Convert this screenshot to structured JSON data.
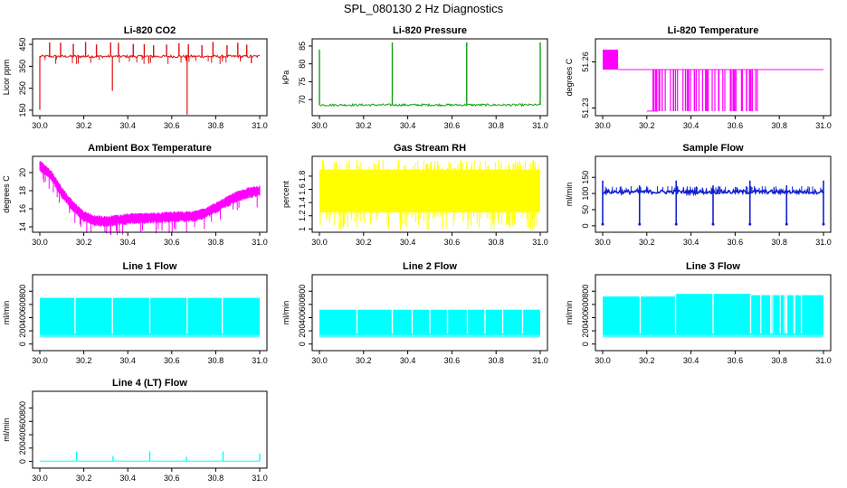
{
  "page_title": "SPL_080130  2 Hz Diagnostics",
  "chart_data": [
    {
      "id": "co2",
      "type": "line",
      "title": "Li-820 CO2",
      "ylabel": "Licor ppm",
      "color": "#e01010",
      "xlim": [
        30.0,
        31.0
      ],
      "ylim": [
        125,
        475
      ],
      "yticks": [
        150,
        250,
        350,
        450
      ],
      "baseline": 395,
      "noise": 6,
      "spikes_up_to": 462,
      "spike_count": 18,
      "spikes_down": [
        {
          "x": 30.0,
          "v": 152
        },
        {
          "x": 30.33,
          "v": 238
        },
        {
          "x": 30.67,
          "v": 130
        }
      ]
    },
    {
      "id": "pressure",
      "type": "line",
      "title": "Li-820 Pressure",
      "ylabel": "kPa",
      "color": "#10a010",
      "xlim": [
        30.0,
        31.0
      ],
      "ylim": [
        65.5,
        87
      ],
      "yticks": [
        70,
        75,
        80,
        85
      ],
      "baseline": 68.5,
      "noise": 0.3,
      "spikes_up": [
        {
          "x": 30.0,
          "v": 84
        },
        {
          "x": 30.33,
          "v": 86
        },
        {
          "x": 30.667,
          "v": 86
        },
        {
          "x": 31.0,
          "v": 86
        }
      ]
    },
    {
      "id": "licor_temp",
      "type": "step",
      "title": "Li-820 Temperature",
      "ylabel": "degrees C",
      "color": "#ff00ff",
      "xlim": [
        30.0,
        31.0
      ],
      "ylim": [
        51.225,
        51.275
      ],
      "yticks": [
        51.23,
        51.26
      ],
      "high_level": 51.268,
      "mid_level": 51.255,
      "low_level": 51.228,
      "high_band": [
        30.0,
        30.07
      ],
      "pulse_range": [
        30.2,
        30.71
      ]
    },
    {
      "id": "ambient_temp",
      "type": "line",
      "title": "Ambient Box Temperature",
      "ylabel": "degrees C",
      "color": "#ff00ff",
      "xlim": [
        30.0,
        31.0
      ],
      "ylim": [
        13.4,
        21.8
      ],
      "yticks": [
        14,
        16,
        18,
        20
      ],
      "curve": [
        [
          30.0,
          20.8
        ],
        [
          30.05,
          19.8
        ],
        [
          30.1,
          17.8
        ],
        [
          30.15,
          16.3
        ],
        [
          30.2,
          15.2
        ],
        [
          30.25,
          14.7
        ],
        [
          30.3,
          14.6
        ],
        [
          30.4,
          14.9
        ],
        [
          30.5,
          15.0
        ],
        [
          30.6,
          15.1
        ],
        [
          30.7,
          15.2
        ],
        [
          30.75,
          15.5
        ],
        [
          30.8,
          16.1
        ],
        [
          30.85,
          16.8
        ],
        [
          30.9,
          17.4
        ],
        [
          30.95,
          17.8
        ],
        [
          31.0,
          18.0
        ]
      ]
    },
    {
      "id": "rh",
      "type": "band",
      "title": "Gas Stream RH",
      "ylabel": "percent",
      "color": "#ffff00",
      "xlim": [
        30.0,
        31.0
      ],
      "ylim": [
        0.95,
        2.1
      ],
      "yticks": [
        1.0,
        1.2,
        1.4,
        1.6,
        1.8
      ],
      "band_top": 1.9,
      "band_bottom": 1.25,
      "spike_top": 2.05,
      "spike_bottom": 0.98
    },
    {
      "id": "sample_flow",
      "type": "line",
      "title": "Sample Flow",
      "ylabel": "ml/min",
      "color": "#1020d0",
      "xlim": [
        30.0,
        31.0
      ],
      "ylim": [
        -20,
        215
      ],
      "yticks": [
        0,
        50,
        100,
        150
      ],
      "baseline": 105,
      "noise": 6,
      "dips_at": [
        30.0,
        30.167,
        30.333,
        30.5,
        30.667,
        30.833,
        31.0
      ],
      "dip_value": 5,
      "peak_value": 140
    },
    {
      "id": "line1",
      "type": "band",
      "title": "Line 1 Flow",
      "ylabel": "ml/min",
      "color": "#00ffff",
      "xlim": [
        30.0,
        31.0
      ],
      "ylim": [
        -100,
        1050
      ],
      "yticks": [
        0,
        200,
        400,
        600,
        800
      ],
      "band_top": 700,
      "band_bottom": 100,
      "gaps_at": [
        30.16,
        30.33,
        30.5,
        30.67,
        30.83
      ]
    },
    {
      "id": "line2",
      "type": "band",
      "title": "Line 2 Flow",
      "ylabel": "ml/min",
      "color": "#00ffff",
      "xlim": [
        30.0,
        31.0
      ],
      "ylim": [
        -100,
        1050
      ],
      "yticks": [
        0,
        200,
        400,
        600,
        800
      ],
      "band_top": 520,
      "band_bottom": 100,
      "gaps_at": [
        30.17,
        30.33,
        30.42,
        30.5,
        30.58,
        30.67,
        30.75,
        30.83,
        30.92
      ]
    },
    {
      "id": "line3",
      "type": "band",
      "title": "Line 3 Flow",
      "ylabel": "ml/min",
      "color": "#00ffff",
      "xlim": [
        30.0,
        31.0
      ],
      "ylim": [
        -100,
        1050
      ],
      "yticks": [
        0,
        200,
        400,
        600,
        800
      ],
      "band_top_steps": [
        [
          30.0,
          720
        ],
        [
          30.33,
          760
        ],
        [
          30.67,
          740
        ]
      ],
      "band_bottom": 100,
      "gaps_at": [
        30.17,
        30.33,
        30.5,
        30.67,
        30.83,
        30.9
      ]
    },
    {
      "id": "line4",
      "type": "line",
      "title": "Line 4 (LT) Flow",
      "ylabel": "ml/min",
      "color": "#00ffff",
      "xlim": [
        30.0,
        31.0
      ],
      "ylim": [
        -100,
        1050
      ],
      "yticks": [
        0,
        200,
        400,
        600,
        800
      ],
      "baseline": 5,
      "spikes_up": [
        {
          "x": 30.167,
          "v": 150
        },
        {
          "x": 30.333,
          "v": 80
        },
        {
          "x": 30.5,
          "v": 150
        },
        {
          "x": 30.667,
          "v": 70
        },
        {
          "x": 30.833,
          "v": 150
        },
        {
          "x": 31.0,
          "v": 120
        }
      ]
    }
  ],
  "xticks": [
    30.0,
    30.2,
    30.4,
    30.6,
    30.8,
    31.0
  ]
}
